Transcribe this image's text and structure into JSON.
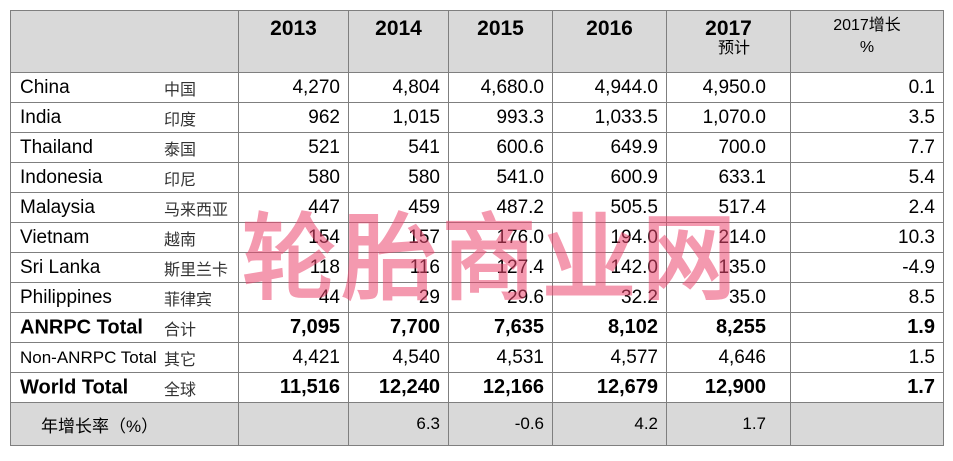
{
  "header": {
    "years": [
      "2013",
      "2014",
      "2015",
      "2016",
      "2017"
    ],
    "estimate_label": "预计",
    "growth_header_line1": "2017增长",
    "growth_header_line2": "%"
  },
  "rows": [
    {
      "en": "China",
      "cn": "中国",
      "v": [
        "4,270",
        "4,804",
        "4,680.0",
        "4,944.0",
        "4,950.0",
        "0.1"
      ]
    },
    {
      "en": "India",
      "cn": "印度",
      "v": [
        "962",
        "1,015",
        "993.3",
        "1,033.5",
        "1,070.0",
        "3.5"
      ]
    },
    {
      "en": "Thailand",
      "cn": "泰国",
      "v": [
        "521",
        "541",
        "600.6",
        "649.9",
        "700.0",
        "7.7"
      ]
    },
    {
      "en": "Indonesia",
      "cn": "印尼",
      "v": [
        "580",
        "580",
        "541.0",
        "600.9",
        "633.1",
        "5.4"
      ]
    },
    {
      "en": "Malaysia",
      "cn": "马来西亚",
      "v": [
        "447",
        "459",
        "487.2",
        "505.5",
        "517.4",
        "2.4"
      ]
    },
    {
      "en": "Vietnam",
      "cn": "越南",
      "v": [
        "154",
        "157",
        "176.0",
        "194.0",
        "214.0",
        "10.3"
      ]
    },
    {
      "en": "Sri Lanka",
      "cn": "斯里兰卡",
      "v": [
        "118",
        "116",
        "127.4",
        "142.0",
        "135.0",
        "-4.9"
      ]
    },
    {
      "en": "Philippines",
      "cn": "菲律宾",
      "v": [
        "44",
        "29",
        "29.6",
        "32.2",
        "35.0",
        "8.5"
      ]
    },
    {
      "en": "ANRPC Total",
      "cn": "合计",
      "v": [
        "7,095",
        "7,700",
        "7,635",
        "8,102",
        "8,255",
        "1.9"
      ]
    },
    {
      "en": "Non-ANRPC Total",
      "cn": "其它",
      "v": [
        "4,421",
        "4,540",
        "4,531",
        "4,577",
        "4,646",
        "1.5"
      ]
    },
    {
      "en": "World Total",
      "cn": "全球",
      "v": [
        "11,516",
        "12,240",
        "12,166",
        "12,679",
        "12,900",
        "1.7"
      ]
    }
  ],
  "annual_growth": {
    "label": "年增长率（%）",
    "v": [
      "",
      "6.3",
      "-0.6",
      "4.2",
      "1.7",
      ""
    ]
  },
  "watermark": "轮胎商业网"
}
